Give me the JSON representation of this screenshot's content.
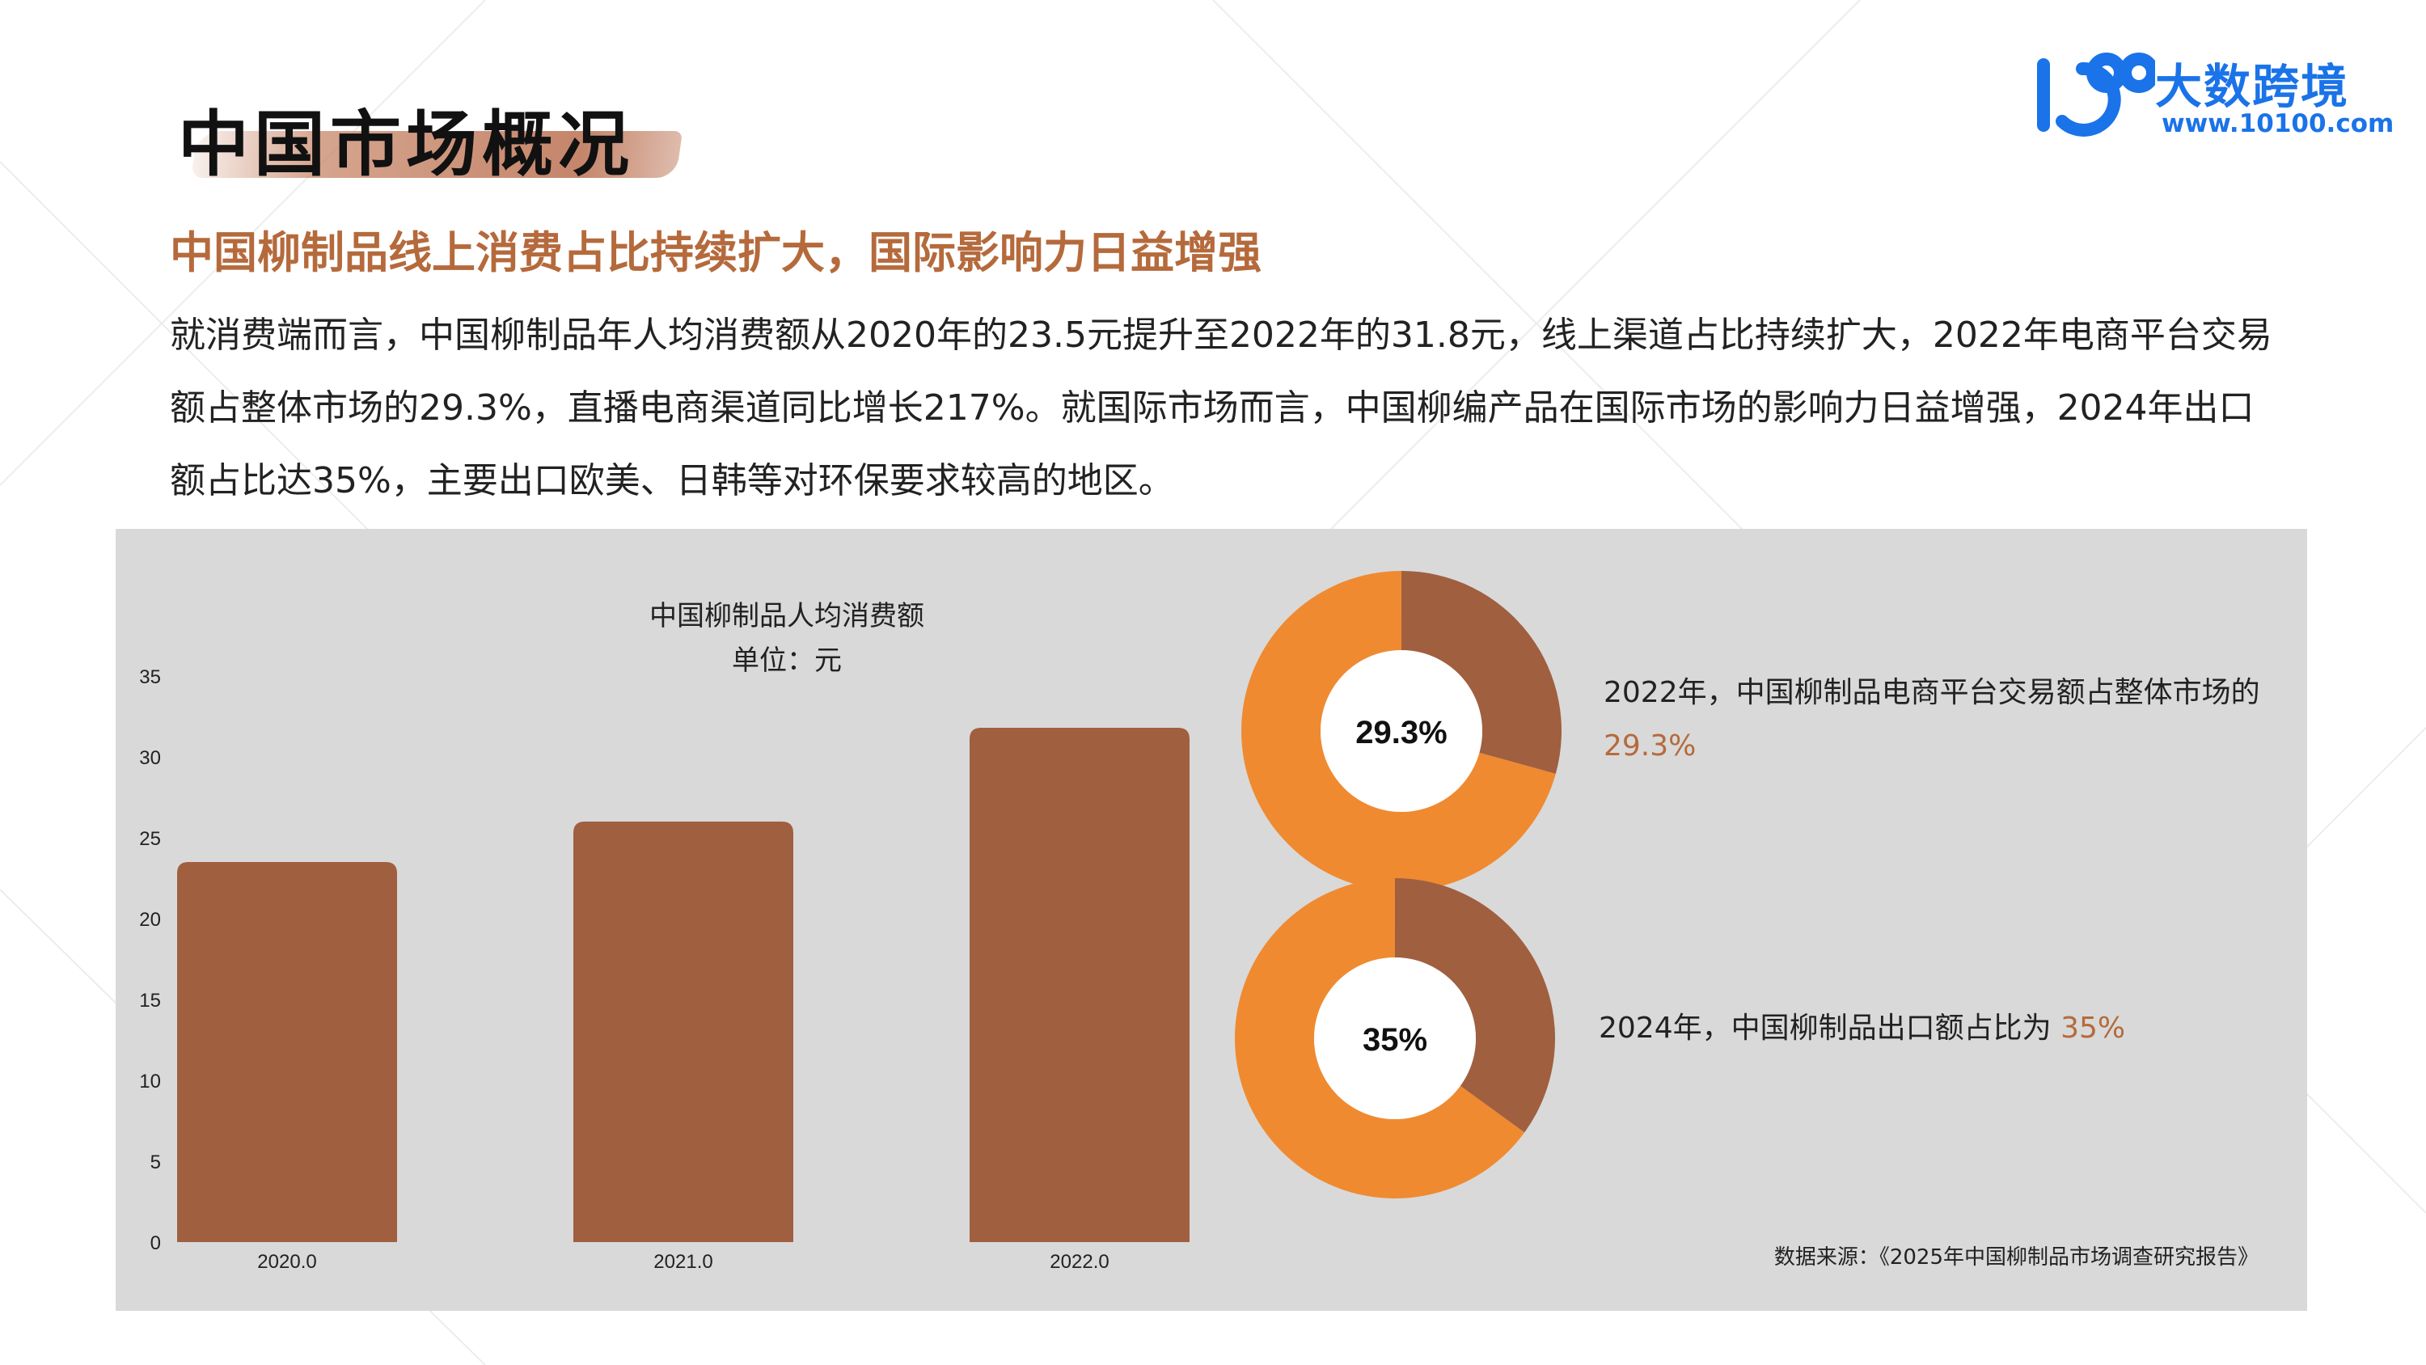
{
  "page": {
    "title": "中国市场概况",
    "subtitle": "中国柳制品线上消费占比持续扩大，国际影响力日益增强",
    "body": "就消费端而言，中国柳制品年人均消费额从2020年的23.5元提升至2022年的31.8元，线上渠道占比持续扩大，2022年电商平台交易额占整体市场的29.3%，直播电商渠道同比增长217%。就国际市场而言，中国柳编产品在国际市场的影响力日益增强，2024年出口额占比达35%，主要出口欧美、日韩等对环保要求较高的地区。"
  },
  "logo": {
    "name": "大数跨境",
    "url": "www.10100.com"
  },
  "colors": {
    "accent": "#b56a3c",
    "bar": "#a05f3f",
    "donut_main": "#f08a30",
    "donut_share": "#a05f3f",
    "panel_bg": "#d9d9d9"
  },
  "chart_data": [
    {
      "type": "bar",
      "title": "中国柳制品人均消费额",
      "subtitle": "单位：元",
      "categories": [
        "2020.0",
        "2021.0",
        "2022.0"
      ],
      "values": [
        23.5,
        26.0,
        31.8
      ],
      "yticks": [
        "0",
        "5",
        "10",
        "15",
        "20",
        "25",
        "30",
        "35"
      ],
      "ylim": [
        0,
        35
      ],
      "grid": false,
      "legend": "none"
    },
    {
      "type": "pie",
      "center_label": "29.3%",
      "share": 29.3,
      "caption_text": "2022年，中国柳制品电商平台交易额占整体市场的",
      "caption_value": "29.3%"
    },
    {
      "type": "pie",
      "center_label": "35%",
      "share": 35,
      "caption_text": "2024年，中国柳制品出口额占比为",
      "caption_value": "35%"
    }
  ],
  "source": "数据来源：《2025年中国柳制品市场调查研究报告》"
}
